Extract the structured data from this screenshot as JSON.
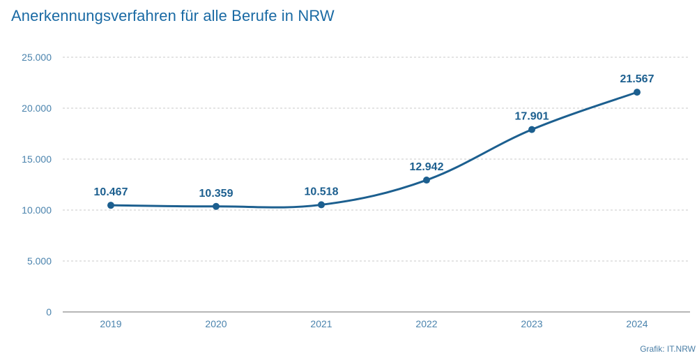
{
  "chart_data": {
    "type": "line",
    "title": "Anerkennungsverfahren für alle Berufe in NRW",
    "categories": [
      "2019",
      "2020",
      "2021",
      "2022",
      "2023",
      "2024"
    ],
    "series": [
      {
        "values": [
          10467,
          10359,
          10518,
          12942,
          17901,
          21567
        ]
      }
    ],
    "data_labels": [
      "10.467",
      "10.359",
      "10.518",
      "12.942",
      "17.901",
      "21.567"
    ],
    "y_ticks": [
      0,
      5000,
      10000,
      15000,
      20000,
      25000
    ],
    "y_tick_labels": [
      "0",
      "5.000",
      "10.000",
      "15.000",
      "20.000",
      "25.000"
    ],
    "ylim": [
      0,
      25000
    ],
    "grid": true,
    "legend": "none",
    "source": "Grafik: IT.NRW",
    "colors": {
      "line": "#1c5f8f",
      "title": "#1a6aa4",
      "ticks": "#4a83ad",
      "grid": "#c9c9c9",
      "axis": "#8a8a8a"
    }
  }
}
